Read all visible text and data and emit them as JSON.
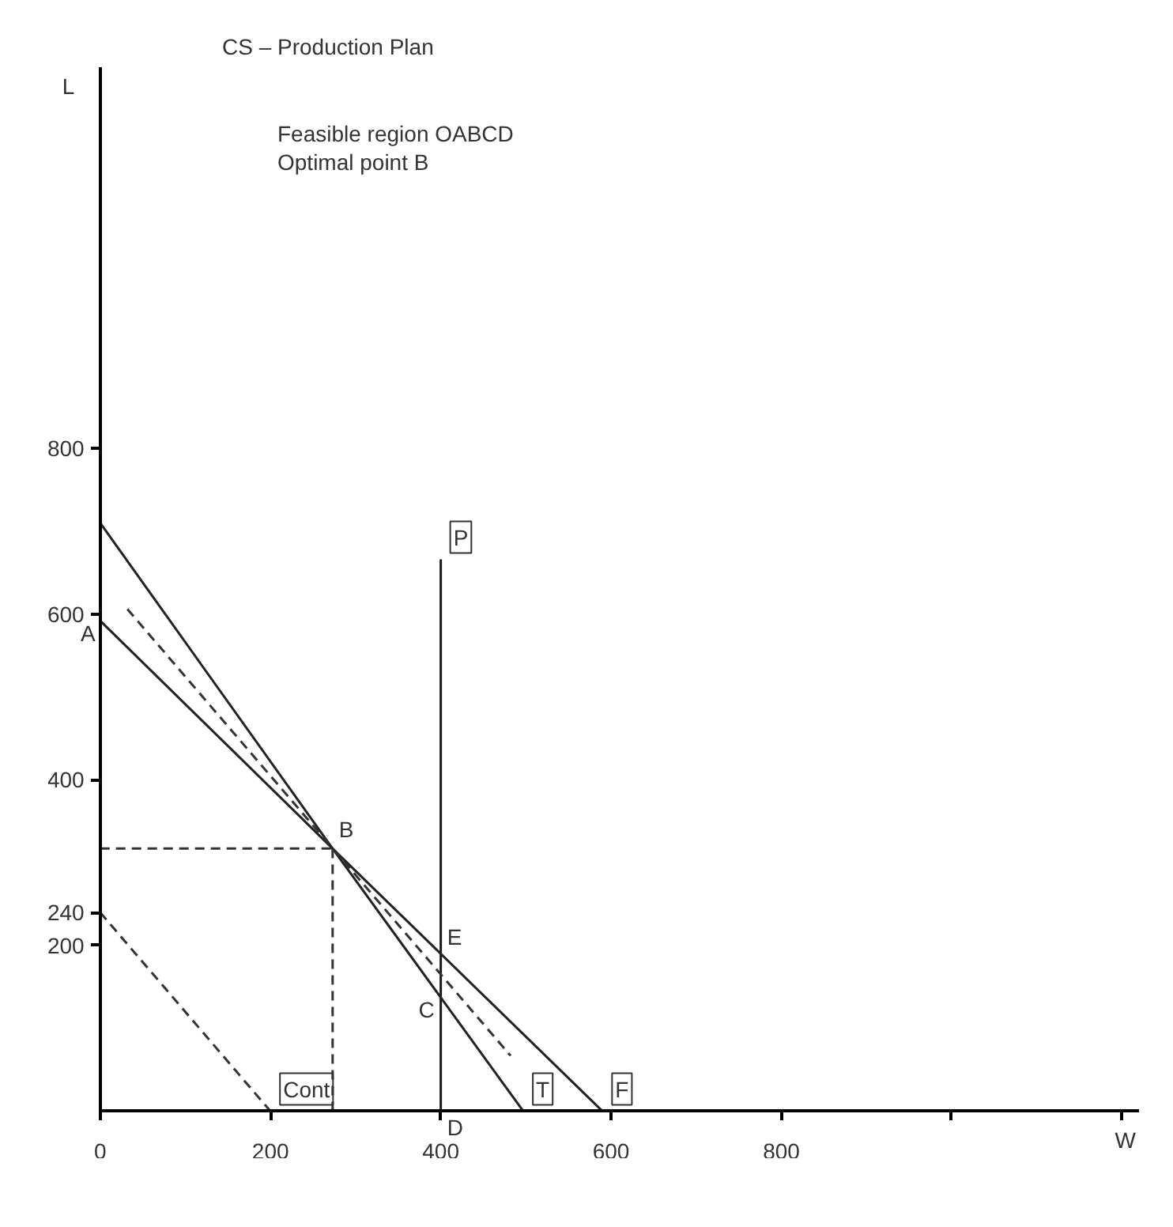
{
  "chart_data": {
    "type": "line",
    "title": "CS – Production Plan",
    "xlabel": "W",
    "ylabel": "L",
    "xlim": [
      0,
      1220
    ],
    "ylim": [
      0,
      1260
    ],
    "xticks": [
      0,
      200,
      400,
      600,
      800,
      {
        "value": 1000,
        "label": null
      },
      {
        "value": 1200,
        "label": null
      }
    ],
    "yticks": [
      200,
      240,
      400,
      600,
      800
    ],
    "grid": false,
    "legend": false,
    "marker": "none",
    "series": [
      {
        "name": "P",
        "color": "#1a1a1a",
        "line_style": "solid",
        "x": [
          400,
          400
        ],
        "values": [
          0,
          666
        ]
      },
      {
        "name": "T",
        "color": "#222222",
        "line_style": "solid",
        "x": [
          0,
          273,
          497
        ],
        "values": [
          592,
          317,
          0
        ]
      },
      {
        "name": "F",
        "color": "#222222",
        "line_style": "solid",
        "x": [
          0,
          273,
          590
        ],
        "values": [
          710,
          317,
          0
        ]
      },
      {
        "color": "#333333",
        "line_style": "dashed",
        "x": [
          32,
          482
        ],
        "values": [
          606,
          67
        ]
      },
      {
        "color": "#333333",
        "line_style": "dashed",
        "x": [
          0,
          273
        ],
        "values": [
          317,
          317
        ]
      },
      {
        "color": "#333333",
        "line_style": "dashed",
        "x": [
          273,
          273
        ],
        "values": [
          0,
          317
        ]
      },
      {
        "name": "Cont",
        "color": "#333333",
        "line_style": "dashed",
        "x": [
          0,
          200
        ],
        "values": [
          240,
          0
        ]
      }
    ],
    "annotations": [
      "Feasible region   OABCD",
      "Optimal point      B",
      {
        "text": "A",
        "x": 0,
        "y": 592
      },
      {
        "text": "B",
        "x": 273,
        "y": 317
      },
      {
        "text": "C",
        "x": 400,
        "y": 138
      },
      {
        "text": "D",
        "x": 400,
        "y": 0
      },
      {
        "text": "E",
        "x": 400,
        "y": 188
      }
    ]
  }
}
